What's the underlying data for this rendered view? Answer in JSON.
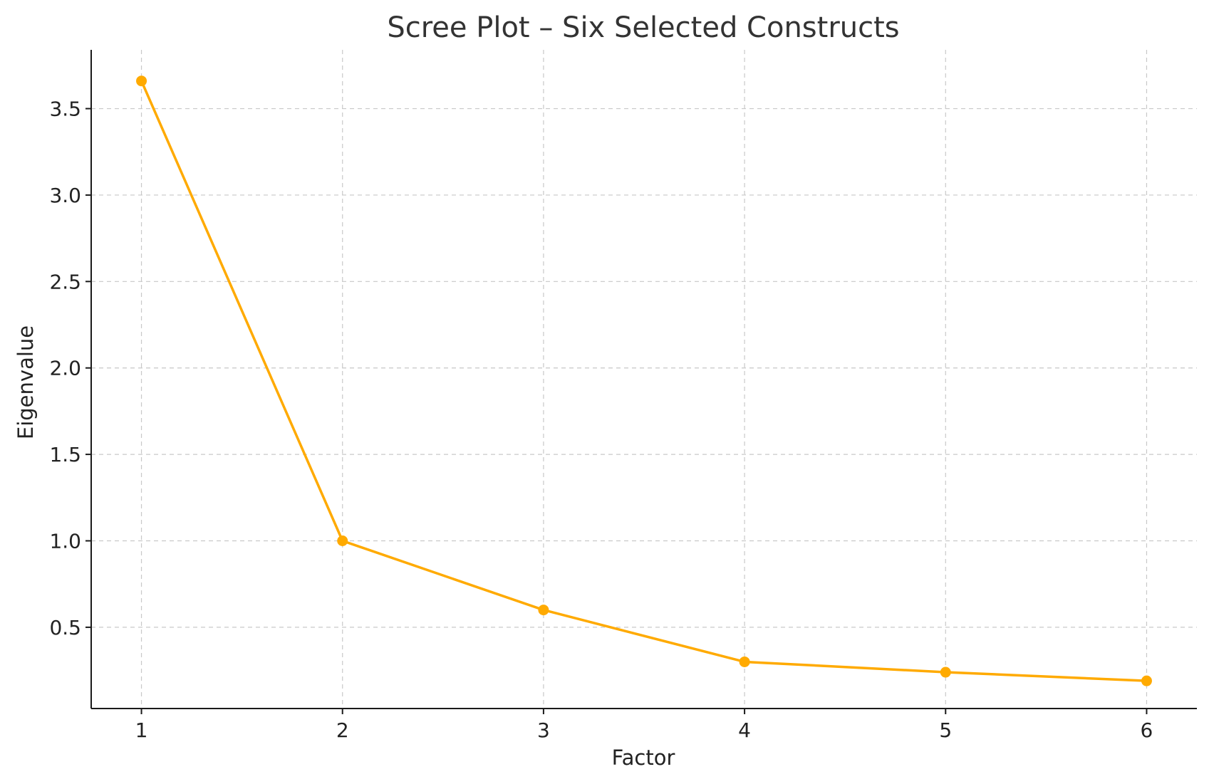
{
  "chart_data": {
    "type": "line",
    "title": "Scree Plot – Six Selected Constructs",
    "xlabel": "Factor",
    "ylabel": "Eigenvalue",
    "x": [
      1,
      2,
      3,
      4,
      5,
      6
    ],
    "x_ticks": [
      "1",
      "2",
      "3",
      "4",
      "5",
      "6"
    ],
    "y_ticks": [
      "0.5",
      "1.0",
      "1.5",
      "2.0",
      "2.5",
      "3.0",
      "3.5"
    ],
    "xlim": [
      0.75,
      6.25
    ],
    "ylim": [
      0.03,
      3.84
    ],
    "grid": true,
    "series": [
      {
        "values": [
          3.66,
          1.0,
          0.6,
          0.3,
          0.24,
          0.19
        ],
        "color": "#FFAA00",
        "marker": "circle"
      }
    ]
  }
}
